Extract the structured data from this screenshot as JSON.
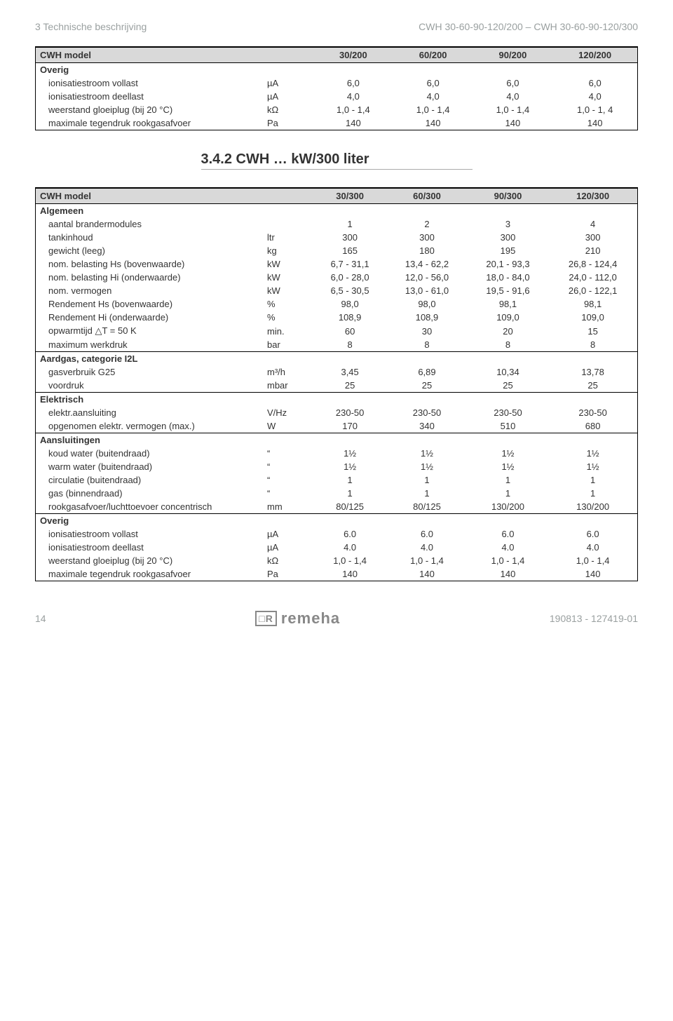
{
  "header": {
    "left": "3   Technische beschrijving",
    "right": "CWH 30-60-90-120/200 – CWH 30-60-90-120/300"
  },
  "section_title": "3.4.2     CWH … kW/300 liter",
  "footer": {
    "page": "14",
    "logo": "remeha",
    "docid": "190813 - 127419-01"
  },
  "table1": {
    "model_label": "CWH model",
    "cols": [
      "30/200",
      "60/200",
      "90/200",
      "120/200"
    ],
    "section": "Overig",
    "rows": [
      {
        "label": "ionisatiestroom vollast",
        "unit": "µA",
        "v": [
          "6,0",
          "6,0",
          "6,0",
          "6,0"
        ]
      },
      {
        "label": "ionisatiestroom deellast",
        "unit": "µA",
        "v": [
          "4,0",
          "4,0",
          "4,0",
          "4,0"
        ]
      },
      {
        "label": "weerstand gloeiplug (bij 20 °C)",
        "unit": "kΩ",
        "v": [
          "1,0 - 1,4",
          "1,0 - 1,4",
          "1,0 - 1,4",
          "1,0 - 1, 4"
        ]
      },
      {
        "label": "maximale tegendruk rookgasafvoer",
        "unit": "Pa",
        "v": [
          "140",
          "140",
          "140",
          "140"
        ]
      }
    ]
  },
  "table2": {
    "model_label": "CWH model",
    "cols": [
      "30/300",
      "60/300",
      "90/300",
      "120/300"
    ],
    "groups": [
      {
        "title": "Algemeen",
        "rows": [
          {
            "label": "aantal brandermodules",
            "unit": "",
            "v": [
              "1",
              "2",
              "3",
              "4"
            ]
          },
          {
            "label": "tankinhoud",
            "unit": "ltr",
            "v": [
              "300",
              "300",
              "300",
              "300"
            ]
          },
          {
            "label": "gewicht (leeg)",
            "unit": "kg",
            "v": [
              "165",
              "180",
              "195",
              "210"
            ]
          },
          {
            "label": "nom. belasting Hs (bovenwaarde)",
            "unit": "kW",
            "v": [
              "6,7 - 31,1",
              "13,4 - 62,2",
              "20,1 - 93,3",
              "26,8 - 124,4"
            ]
          },
          {
            "label": "nom. belasting Hi (onderwaarde)",
            "unit": "kW",
            "v": [
              "6,0 - 28,0",
              "12,0 - 56,0",
              "18,0 - 84,0",
              "24,0 - 112,0"
            ]
          },
          {
            "label": "nom. vermogen",
            "unit": "kW",
            "v": [
              "6,5 - 30,5",
              "13,0 - 61,0",
              "19,5 - 91,6",
              "26,0 - 122,1"
            ]
          },
          {
            "label": "Rendement Hs (bovenwaarde)",
            "unit": "%",
            "v": [
              "98,0",
              "98,0",
              "98,1",
              "98,1"
            ]
          },
          {
            "label": "Rendement Hi (onderwaarde)",
            "unit": "%",
            "v": [
              "108,9",
              "108,9",
              "109,0",
              "109,0"
            ]
          },
          {
            "label": "opwarmtijd △T = 50 K",
            "unit": "min.",
            "v": [
              "60",
              "30",
              "20",
              "15"
            ]
          },
          {
            "label": "maximum werkdruk",
            "unit": "bar",
            "v": [
              "8",
              "8",
              "8",
              "8"
            ]
          }
        ]
      },
      {
        "title": "Aardgas, categorie I2L",
        "rows": [
          {
            "label": "gasverbruik G25",
            "unit": "m³/h",
            "v": [
              "3,45",
              "6,89",
              "10,34",
              "13,78"
            ]
          },
          {
            "label": "voordruk",
            "unit": "mbar",
            "v": [
              "25",
              "25",
              "25",
              "25"
            ]
          }
        ]
      },
      {
        "title": "Elektrisch",
        "rows": [
          {
            "label": "elektr.aansluiting",
            "unit": "V/Hz",
            "v": [
              "230-50",
              "230-50",
              "230-50",
              "230-50"
            ]
          },
          {
            "label": "opgenomen elektr. vermogen (max.)",
            "unit": "W",
            "v": [
              "170",
              "340",
              "510",
              "680"
            ]
          }
        ]
      },
      {
        "title": "Aansluitingen",
        "rows": [
          {
            "label": "koud water (buitendraad)",
            "unit": "“",
            "v": [
              "1½",
              "1½",
              "1½",
              "1½"
            ]
          },
          {
            "label": "warm water (buitendraad)",
            "unit": "“",
            "v": [
              "1½",
              "1½",
              "1½",
              "1½"
            ]
          },
          {
            "label": "circulatie (buitendraad)",
            "unit": "“",
            "v": [
              "1",
              "1",
              "1",
              "1"
            ]
          },
          {
            "label": "gas (binnendraad)",
            "unit": "“",
            "v": [
              "1",
              "1",
              "1",
              "1"
            ]
          },
          {
            "label": "rookgasafvoer/luchttoevoer concentrisch",
            "unit": "mm",
            "v": [
              "80/125",
              "80/125",
              "130/200",
              "130/200"
            ]
          }
        ]
      },
      {
        "title": "Overig",
        "rows": [
          {
            "label": "ionisatiestroom vollast",
            "unit": "µA",
            "v": [
              "6.0",
              "6.0",
              "6.0",
              "6.0"
            ]
          },
          {
            "label": "ionisatiestroom deellast",
            "unit": "µA",
            "v": [
              "4.0",
              "4.0",
              "4.0",
              "4.0"
            ]
          },
          {
            "label": "weerstand gloeiplug (bij 20 °C)",
            "unit": "kΩ",
            "v": [
              "1,0 - 1,4",
              "1,0 - 1,4",
              "1,0 - 1,4",
              "1,0 - 1,4"
            ]
          },
          {
            "label": "maximale tegendruk rookgasafvoer",
            "unit": "Pa",
            "v": [
              "140",
              "140",
              "140",
              "140"
            ]
          }
        ]
      }
    ]
  }
}
